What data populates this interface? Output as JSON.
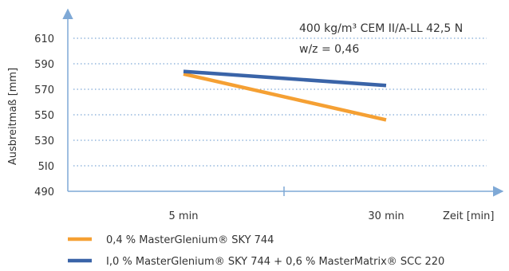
{
  "chart_data": {
    "type": "line",
    "title": "",
    "ylabel": "Ausbreitmaß [mm]",
    "xlabel": "Zeit [min]",
    "ylim": [
      490,
      610
    ],
    "yticks": [
      {
        "value": 610,
        "label": "610"
      },
      {
        "value": 590,
        "label": "590"
      },
      {
        "value": 570,
        "label": "570"
      },
      {
        "value": 550,
        "label": "550"
      },
      {
        "value": 530,
        "label": "530"
      },
      {
        "value": 510,
        "label": "5I0"
      },
      {
        "value": 490,
        "label": "490"
      }
    ],
    "categories": [
      "5 min",
      "30 min"
    ],
    "grid": true,
    "legend_position": "bottom",
    "annotations": {
      "line1": "400 kg/m³ CEM II/A-LL 42,5 N",
      "line2": "w/z = 0,46"
    },
    "series": [
      {
        "name": "0,4 % MasterGlenium® SKY 744",
        "color": "#f5a033",
        "values": [
          582,
          546
        ]
      },
      {
        "name": "I,0 % MasterGlenium® SKY 744 + 0,6 % MasterMatrix® SCC 220",
        "color": "#3a64a8",
        "values": [
          584,
          573
        ]
      }
    ],
    "colors": {
      "axis": "#7fa9d6",
      "grid": "#7fa9d6"
    }
  }
}
